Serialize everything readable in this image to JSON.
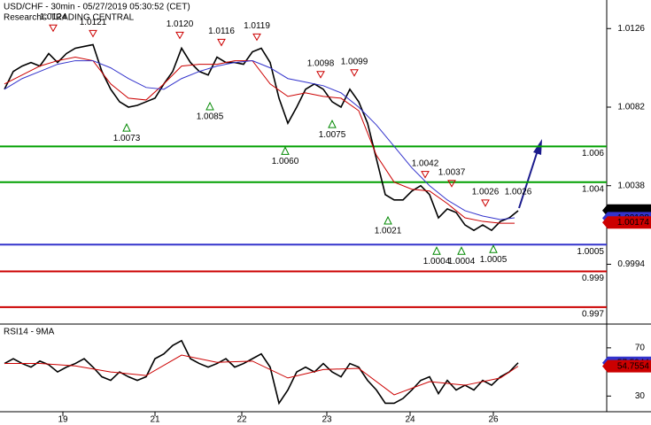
{
  "chart_data": [
    {
      "type": "line",
      "title": "USD/CHF - 30min - 05/27/2019 05:30:52 (CET)",
      "subtitle": "Research© TRADING CENTRAL",
      "xlim": [
        -2.5,
        340
      ],
      "ylim": [
        0.9961,
        1.0142
      ],
      "yticks": [
        1.0126,
        1.0082,
        1.0038,
        0.9994
      ],
      "series": [
        {
          "color": "#000000",
          "x": [
            0,
            5,
            10,
            15,
            20,
            25,
            30,
            35,
            40,
            45,
            50,
            55,
            60,
            65,
            70,
            75,
            80,
            85,
            90,
            95,
            100,
            105,
            110,
            115,
            120,
            125,
            130,
            135,
            140,
            145,
            150,
            155,
            160,
            165,
            170,
            175,
            180,
            185,
            190,
            195,
            200,
            205,
            210,
            215,
            220,
            225,
            230,
            235,
            240,
            245,
            250,
            255,
            260,
            265,
            270,
            275,
            280,
            285,
            290
          ],
          "values": [
            1.0092,
            1.0102,
            1.0105,
            1.0107,
            1.0105,
            1.0112,
            1.0107,
            1.0112,
            1.0115,
            1.0116,
            1.0117,
            1.0102,
            1.0092,
            1.0085,
            1.0082,
            1.0083,
            1.0085,
            1.0087,
            1.0095,
            1.0102,
            1.0115,
            1.0107,
            1.0102,
            1.01,
            1.011,
            1.0107,
            1.0107,
            1.0106,
            1.0113,
            1.0115,
            1.0107,
            1.0087,
            1.0073,
            1.0082,
            1.0092,
            1.0095,
            1.0092,
            1.0085,
            1.0082,
            1.0092,
            1.0085,
            1.0073,
            1.0053,
            1.0033,
            1.003,
            1.003,
            1.0035,
            1.0038,
            1.0033,
            1.002,
            1.0025,
            1.0023,
            1.0016,
            1.0013,
            1.0016,
            1.0013,
            1.0018,
            1.002,
            1.0024
          ]
        },
        {
          "color": "#cc0000",
          "x": [
            0,
            10,
            20,
            30,
            40,
            50,
            60,
            70,
            80,
            90,
            100,
            110,
            120,
            130,
            140,
            150,
            160,
            170,
            180,
            190,
            200,
            210,
            220,
            230,
            240,
            250,
            260,
            270,
            280,
            288
          ],
          "values": [
            1.0095,
            1.01,
            1.0105,
            1.0108,
            1.011,
            1.0108,
            1.0095,
            1.0087,
            1.0086,
            1.0095,
            1.0105,
            1.0106,
            1.0106,
            1.0108,
            1.0108,
            1.0095,
            1.0088,
            1.009,
            1.0088,
            1.0087,
            1.008,
            1.0055,
            1.004,
            1.0036,
            1.0035,
            1.0028,
            1.002,
            1.0018,
            1.0017,
            1.0017
          ]
        },
        {
          "color": "#3333cc",
          "x": [
            0,
            10,
            20,
            30,
            40,
            50,
            60,
            70,
            80,
            90,
            100,
            110,
            120,
            130,
            140,
            150,
            160,
            170,
            180,
            190,
            200,
            210,
            220,
            230,
            240,
            250,
            260,
            270,
            280,
            288
          ],
          "values": [
            1.0092,
            1.0098,
            1.0102,
            1.0106,
            1.0108,
            1.0108,
            1.0104,
            1.0098,
            1.0093,
            1.0092,
            1.0098,
            1.0102,
            1.0105,
            1.0107,
            1.0108,
            1.0104,
            1.0098,
            1.0096,
            1.0094,
            1.009,
            1.0082,
            1.0072,
            1.006,
            1.0048,
            1.0038,
            1.003,
            1.0024,
            1.0021,
            1.0019,
            1.002
          ]
        }
      ],
      "levels": [
        {
          "value": 1.006,
          "color": "#00a000"
        },
        {
          "value": 1.004,
          "color": "#00a000"
        },
        {
          "value": 1.0005,
          "color": "#3333cc"
        },
        {
          "value": 0.999,
          "color": "#cc0000"
        },
        {
          "value": 0.997,
          "color": "#cc0000"
        }
      ],
      "highs": [
        {
          "x": 27.5,
          "value": 1.0124,
          "label": "1.0124"
        },
        {
          "x": 50,
          "value": 1.0121,
          "label": "1.0121"
        },
        {
          "x": 99,
          "value": 1.012,
          "label": "1.0120"
        },
        {
          "x": 122.5,
          "value": 1.0116,
          "label": "1.0116"
        },
        {
          "x": 142.5,
          "value": 1.0119,
          "label": "1.0119"
        },
        {
          "x": 178.5,
          "value": 1.0098,
          "label": "1.0098"
        },
        {
          "x": 197.5,
          "value": 1.0099,
          "label": "1.0099"
        },
        {
          "x": 237.5,
          "value": 1.0042,
          "label": "1.0042"
        },
        {
          "x": 252.5,
          "value": 1.0037,
          "label": "1.0037"
        },
        {
          "x": 271.5,
          "value": 1.0026,
          "label": "1.0026"
        }
      ],
      "lows": [
        {
          "x": 69,
          "value": 1.0073,
          "label": "1.0073"
        },
        {
          "x": 116,
          "value": 1.0085,
          "label": "1.0085"
        },
        {
          "x": 158.5,
          "value": 1.006,
          "label": "1.0060"
        },
        {
          "x": 185,
          "value": 1.0075,
          "label": "1.0075"
        },
        {
          "x": 216.5,
          "value": 1.0021,
          "label": "1.0021"
        },
        {
          "x": 244,
          "value": 1.0004,
          "label": "1.0004"
        },
        {
          "x": 258,
          "value": 1.0004,
          "label": "1.0004"
        },
        {
          "x": 276,
          "value": 1.0005,
          "label": "1.0005"
        }
      ],
      "target": {
        "x": 290,
        "value": 1.0026,
        "label": "1.0026"
      },
      "price_tags": [
        {
          "value": 1.00241,
          "color": "#000000"
        },
        {
          "value": 1.00198,
          "color": "#3333cc"
        },
        {
          "value": 1.00174,
          "color": "#cc0000"
        }
      ]
    },
    {
      "type": "line",
      "title": "RSI14 - 9MA",
      "xlim": [
        -2.5,
        340
      ],
      "ylim": [
        17,
        89
      ],
      "yticks": [
        70,
        30
      ],
      "xticks": [
        {
          "value": 33,
          "label": "19"
        },
        {
          "value": 85,
          "label": "21"
        },
        {
          "value": 134,
          "label": "22"
        },
        {
          "value": 182,
          "label": "23"
        },
        {
          "value": 229,
          "label": "24"
        },
        {
          "value": 276,
          "label": "26"
        }
      ],
      "series": [
        {
          "color": "#000000",
          "x": [
            0,
            5,
            10,
            15,
            20,
            25,
            30,
            35,
            40,
            45,
            50,
            55,
            60,
            65,
            70,
            75,
            80,
            85,
            90,
            95,
            100,
            105,
            110,
            115,
            120,
            125,
            130,
            135,
            140,
            145,
            150,
            155,
            160,
            165,
            170,
            175,
            180,
            185,
            190,
            195,
            200,
            205,
            210,
            215,
            220,
            225,
            230,
            235,
            240,
            245,
            250,
            255,
            260,
            265,
            270,
            275,
            280,
            285,
            290
          ],
          "values": [
            57,
            61,
            57,
            54,
            59,
            56,
            50,
            54,
            57,
            61,
            54,
            46,
            43,
            50,
            46,
            43,
            46,
            61,
            65,
            72,
            76,
            61,
            57,
            54,
            57,
            61,
            54,
            57,
            61,
            65,
            54,
            24,
            35,
            50,
            54,
            50,
            57,
            50,
            46,
            57,
            54,
            43,
            35,
            24,
            24,
            28,
            35,
            43,
            46,
            32,
            43,
            35,
            39,
            35,
            43,
            39,
            46,
            50,
            57.5944
          ]
        },
        {
          "color": "#cc0000",
          "x": [
            0,
            20,
            40,
            60,
            80,
            100,
            120,
            140,
            160,
            180,
            200,
            220,
            240,
            260,
            280,
            290
          ],
          "values": [
            57,
            57,
            55,
            50,
            47,
            64,
            58,
            59,
            45,
            52,
            53,
            31,
            42,
            39,
            45,
            54.7554
          ]
        }
      ],
      "price_tags": [
        {
          "value": 57.5944,
          "color": "#3333cc"
        },
        {
          "value": 54.7554,
          "color": "#cc0000"
        }
      ]
    }
  ]
}
